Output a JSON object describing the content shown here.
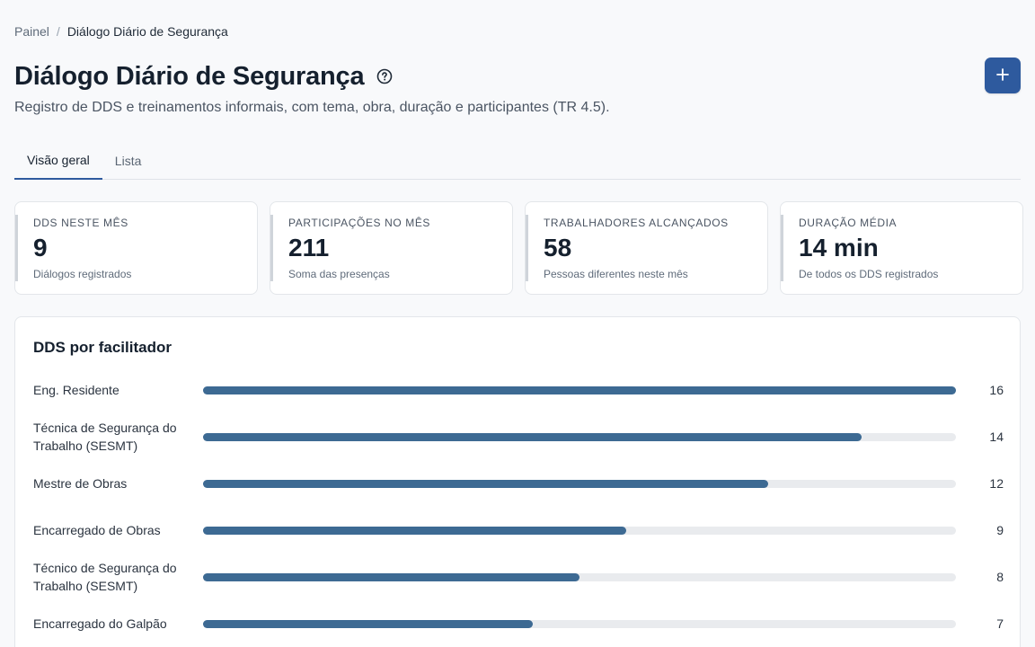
{
  "breadcrumb": {
    "home": "Painel",
    "separator": "/",
    "current": "Diálogo Diário de Segurança"
  },
  "header": {
    "title": "Diálogo Diário de Segurança",
    "subtitle": "Registro de DDS e treinamentos informais, com tema, obra, duração e participantes (TR 4.5).",
    "help_icon": "question-circle-icon",
    "add_button_icon": "plus-icon"
  },
  "tabs": [
    {
      "label": "Visão geral",
      "active": true
    },
    {
      "label": "Lista",
      "active": false
    }
  ],
  "stats": [
    {
      "label": "DDS NESTE MÊS",
      "value": "9",
      "note": "Diálogos registrados"
    },
    {
      "label": "PARTICIPAÇÕES NO MÊS",
      "value": "211",
      "note": "Soma das presenças"
    },
    {
      "label": "TRABALHADORES ALCANÇADOS",
      "value": "58",
      "note": "Pessoas diferentes neste mês"
    },
    {
      "label": "DURAÇÃO MÉDIA",
      "value": "14 min",
      "note": "De todos os DDS registrados"
    }
  ],
  "colors": {
    "primary": "#2e5a9e",
    "bar_fill": "#3d6a93",
    "bar_track": "#e9ebee"
  },
  "chart_data": {
    "type": "bar",
    "orientation": "horizontal",
    "title": "DDS por facilitador",
    "categories": [
      "Eng. Residente",
      "Técnica de Segurança do Trabalho (SESMT)",
      "Mestre de Obras",
      "Encarregado de Obras",
      "Técnico de Segurança do Trabalho (SESMT)",
      "Encarregado do Galpão"
    ],
    "values": [
      16,
      14,
      12,
      9,
      8,
      7
    ],
    "xlim": [
      0,
      16
    ]
  }
}
